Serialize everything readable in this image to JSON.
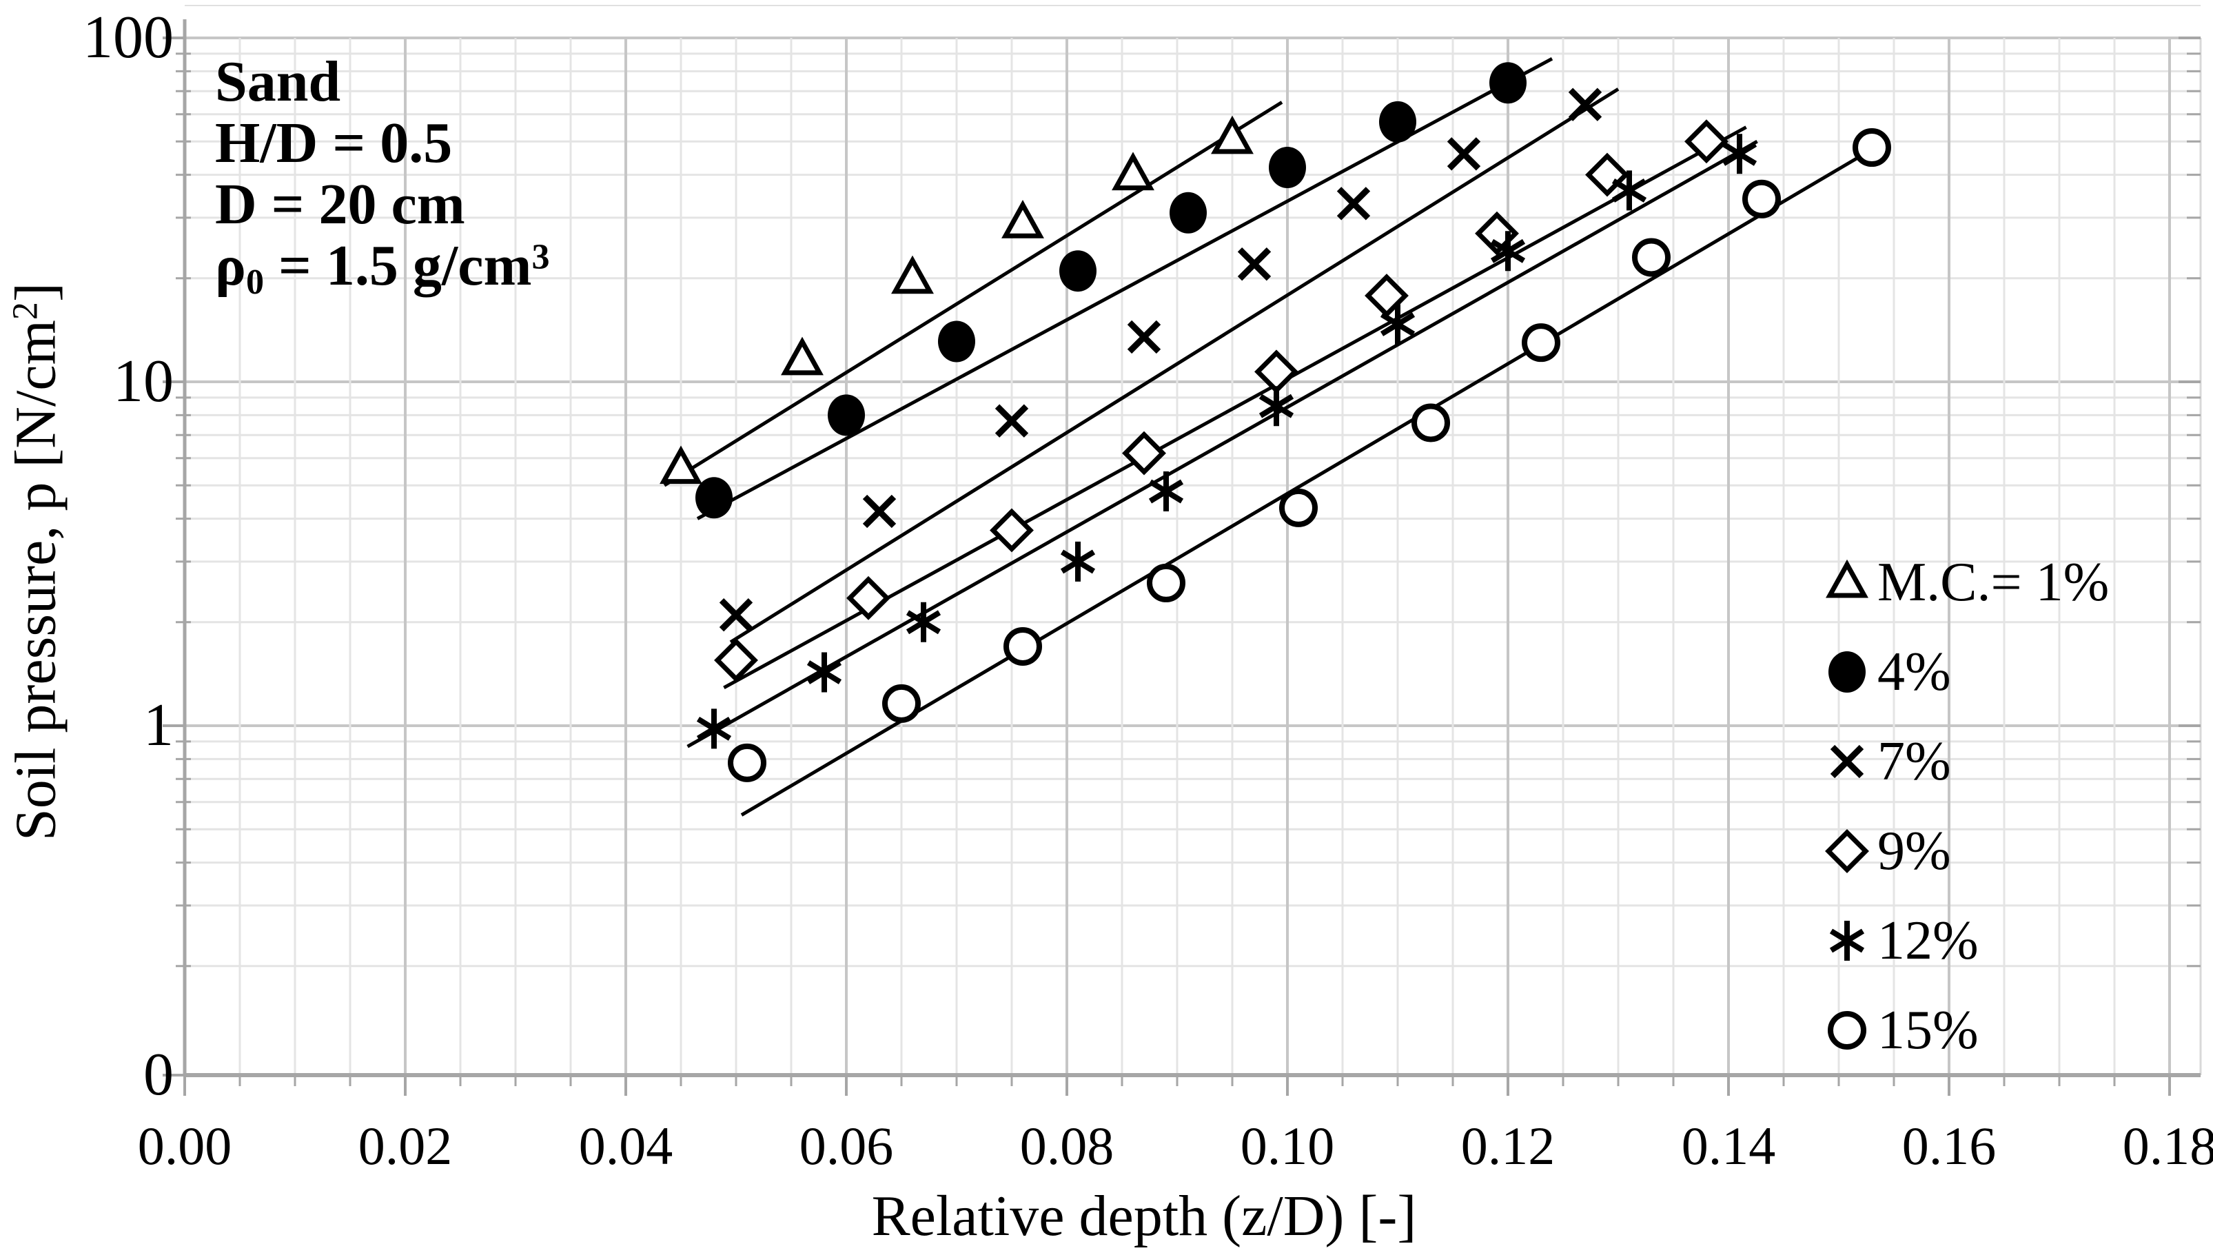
{
  "chart_data": {
    "type": "scatter",
    "xlabel": "Relative depth (z/D) [-]",
    "ylabel": "Soil pressure, p [N/cm2]",
    "y_scale": "log",
    "grid": true,
    "legend_position": "middle-right",
    "annotation": {
      "line1": "Sand",
      "line2": "H/D = 0.5",
      "line3": "D = 20 cm",
      "rho_symbol": "ρ",
      "rho_sub": "0",
      "rho_mid": " = 1.5 g/cm",
      "rho_sup": "3"
    },
    "x_axis": {
      "title": "Relative depth (z/D) [-]",
      "min": 0,
      "max": 0.183,
      "major_step": 0.02,
      "minor_step": 0.005,
      "tick_values": [
        0.0,
        0.02,
        0.04,
        0.06,
        0.08,
        0.1,
        0.12,
        0.14,
        0.16,
        0.18
      ],
      "tick_labels": [
        "0.00",
        "0.02",
        "0.04",
        "0.06",
        "0.08",
        "0.10",
        "0.12",
        "0.14",
        "0.16",
        "0.18"
      ]
    },
    "y_axis": {
      "title_pre": "Soil pressure, p  [N/cm",
      "title_sup": "2",
      "title_post": "]",
      "scale": "log",
      "min": 0.0964,
      "max": 100,
      "tick_values": [
        100,
        10,
        1,
        0.0964
      ],
      "tick_labels": [
        "100",
        "10",
        "1",
        "0"
      ]
    },
    "series": [
      {
        "label": "M.C.= 1%",
        "marker": "triangle-open",
        "points": [
          [
            0.045,
            5.6
          ],
          [
            0.056,
            11.6
          ],
          [
            0.066,
            20
          ],
          [
            0.076,
            29
          ],
          [
            0.086,
            40
          ],
          [
            0.095,
            51
          ]
        ],
        "trendline": [
          [
            0.0435,
            5.0
          ],
          [
            0.0995,
            65
          ]
        ]
      },
      {
        "label": "4%",
        "marker": "circle-filled",
        "points": [
          [
            0.048,
            4.6
          ],
          [
            0.06,
            8.0
          ],
          [
            0.07,
            13.1
          ],
          [
            0.081,
            21
          ],
          [
            0.091,
            31
          ],
          [
            0.1,
            42
          ],
          [
            0.11,
            57
          ],
          [
            0.12,
            74
          ]
        ],
        "trendline": [
          [
            0.0465,
            4.0
          ],
          [
            0.124,
            87
          ]
        ]
      },
      {
        "label": "7%",
        "marker": "x",
        "points": [
          [
            0.05,
            2.1
          ],
          [
            0.063,
            4.2
          ],
          [
            0.075,
            7.7
          ],
          [
            0.087,
            13.5
          ],
          [
            0.097,
            22
          ],
          [
            0.106,
            33
          ],
          [
            0.116,
            46
          ],
          [
            0.127,
            64
          ]
        ],
        "trendline": [
          [
            0.0495,
            1.75
          ],
          [
            0.13,
            71
          ]
        ]
      },
      {
        "label": "9%",
        "marker": "diamond-open",
        "points": [
          [
            0.05,
            1.55
          ],
          [
            0.062,
            2.35
          ],
          [
            0.075,
            3.7
          ],
          [
            0.087,
            6.2
          ],
          [
            0.099,
            10.7
          ],
          [
            0.109,
            17.8
          ],
          [
            0.119,
            27
          ],
          [
            0.129,
            40
          ],
          [
            0.138,
            50
          ]
        ],
        "trendline": [
          [
            0.0489,
            1.29
          ],
          [
            0.1416,
            55
          ]
        ]
      },
      {
        "label": "12%",
        "marker": "asterisk",
        "points": [
          [
            0.048,
            0.98
          ],
          [
            0.058,
            1.43
          ],
          [
            0.067,
            2.0
          ],
          [
            0.081,
            3.0
          ],
          [
            0.089,
            4.8
          ],
          [
            0.099,
            8.5
          ],
          [
            0.11,
            14.7
          ],
          [
            0.12,
            24
          ],
          [
            0.131,
            36
          ],
          [
            0.141,
            46
          ]
        ],
        "trendline": [
          [
            0.0456,
            0.87
          ],
          [
            0.1426,
            50
          ]
        ]
      },
      {
        "label": "15%",
        "marker": "circle-open",
        "points": [
          [
            0.051,
            0.78
          ],
          [
            0.065,
            1.16
          ],
          [
            0.076,
            1.7
          ],
          [
            0.089,
            2.6
          ],
          [
            0.101,
            4.3
          ],
          [
            0.113,
            7.6
          ],
          [
            0.123,
            13
          ],
          [
            0.133,
            23
          ],
          [
            0.143,
            34
          ],
          [
            0.153,
            48
          ]
        ],
        "trendline": [
          [
            0.0505,
            0.55
          ],
          [
            0.1533,
            48
          ]
        ]
      }
    ],
    "colors": {
      "marker": "#000000",
      "trendline": "#000000",
      "grid_minor": "#e4e4e4",
      "grid_major": "#c6c6c6",
      "axis": "#a6a6a6",
      "text": "#000000",
      "background": "#ffffff"
    }
  }
}
